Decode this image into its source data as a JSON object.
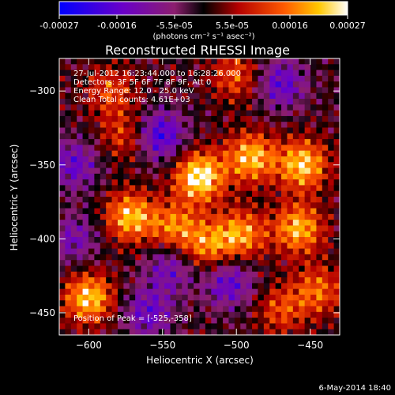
{
  "colorbar": {
    "tick_labels": [
      "-0.00027",
      "-0.00016",
      "-5.5e-05",
      "5.5e-05",
      "0.00016",
      "0.00027"
    ],
    "units_label": "(photons cm⁻² s⁻¹ asec⁻²)",
    "range": [
      -0.00027,
      0.00027
    ],
    "colormap": [
      "#0000ff",
      "#6a00c8",
      "#8c1e6e",
      "#000000",
      "#b40000",
      "#ff5a00",
      "#ffc800",
      "#ffffff"
    ]
  },
  "footer": {
    "date": "6-May-2014 18:40"
  },
  "chart_data": {
    "type": "heatmap",
    "title": "Reconstructed RHESSI Image",
    "xlabel": "Heliocentric X (arcsec)",
    "ylabel": "Heliocentric Y (arcsec)",
    "xlim": [
      -620,
      -430
    ],
    "ylim": [
      -465,
      -278
    ],
    "x_ticks": [
      -600,
      -550,
      -500,
      -450
    ],
    "y_ticks": [
      -300,
      -350,
      -400,
      -450
    ],
    "x_tick_labels": [
      "−600",
      "−550",
      "−500",
      "−450"
    ],
    "y_tick_labels": [
      "−300",
      "−350",
      "−400",
      "−450"
    ],
    "info_lines": [
      "27-Jul-2012 16:23:44.000 to 16:28:26.000",
      "Detectors: 3F 5F 6F 7F 8F 9F, Att 0",
      "Energy Range: 12.0 - 25.0 keV",
      "Clean    Total counts: 4.61E+03"
    ],
    "peak_label": "Position of Peak = [-525,-358]",
    "peak_position": [
      -525,
      -358
    ],
    "sources": [
      {
        "x": -525,
        "y": -358,
        "amp": 1.0
      },
      {
        "x": -455,
        "y": -350,
        "amp": 0.85
      },
      {
        "x": -490,
        "y": -345,
        "amp": 0.8
      },
      {
        "x": -572,
        "y": -385,
        "amp": 0.8
      },
      {
        "x": -458,
        "y": -393,
        "amp": 0.78
      },
      {
        "x": -497,
        "y": -397,
        "amp": 0.7
      },
      {
        "x": -600,
        "y": -440,
        "amp": 0.85
      },
      {
        "x": -542,
        "y": -392,
        "amp": 0.6
      },
      {
        "x": -520,
        "y": -405,
        "amp": 0.6
      },
      {
        "x": -445,
        "y": -435,
        "amp": 0.55
      },
      {
        "x": -575,
        "y": -330,
        "amp": 0.45
      },
      {
        "x": -500,
        "y": -290,
        "amp": 0.5
      },
      {
        "x": -585,
        "y": -300,
        "amp": 0.45
      },
      {
        "x": -470,
        "y": -448,
        "amp": 0.45
      },
      {
        "x": -560,
        "y": -450,
        "amp": -0.55
      },
      {
        "x": -552,
        "y": -330,
        "amp": -0.75
      },
      {
        "x": -610,
        "y": -350,
        "amp": -0.55
      },
      {
        "x": -470,
        "y": -295,
        "amp": -0.6
      },
      {
        "x": -505,
        "y": -430,
        "amp": -0.6
      },
      {
        "x": -545,
        "y": -420,
        "amp": -0.5
      },
      {
        "x": -610,
        "y": -400,
        "amp": -0.45
      }
    ]
  }
}
